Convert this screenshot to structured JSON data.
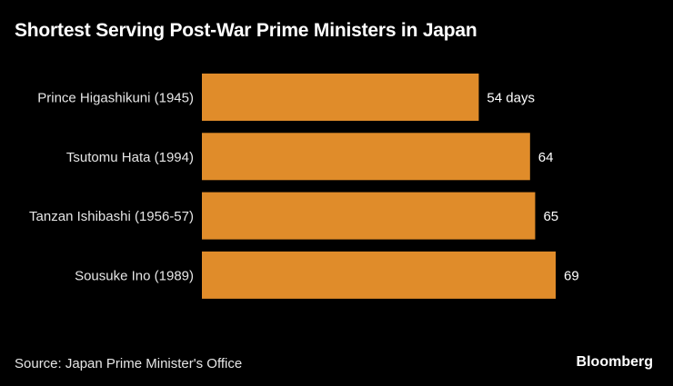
{
  "title": "Shortest Serving Post-War Prime Ministers in Japan",
  "source": "Source: Japan Prime Minister's Office",
  "brand": "Bloomberg",
  "colors": {
    "background": "#000000",
    "bar": "#e08c2a",
    "text": "#ffffff"
  },
  "chart_data": {
    "type": "bar",
    "orientation": "horizontal",
    "categories": [
      "Prince Higashikuni (1945)",
      "Tsutomu Hata (1994)",
      "Tanzan Ishibashi (1956-57)",
      "Sousuke Ino (1989)"
    ],
    "values": [
      54,
      64,
      65,
      69
    ],
    "value_labels": [
      "54 days",
      "64",
      "65",
      "69"
    ],
    "title": "Shortest Serving Post-War Prime Ministers in Japan",
    "xlabel": "",
    "ylabel": "",
    "xlim": [
      0,
      69
    ],
    "grid": false,
    "legend": "none"
  }
}
